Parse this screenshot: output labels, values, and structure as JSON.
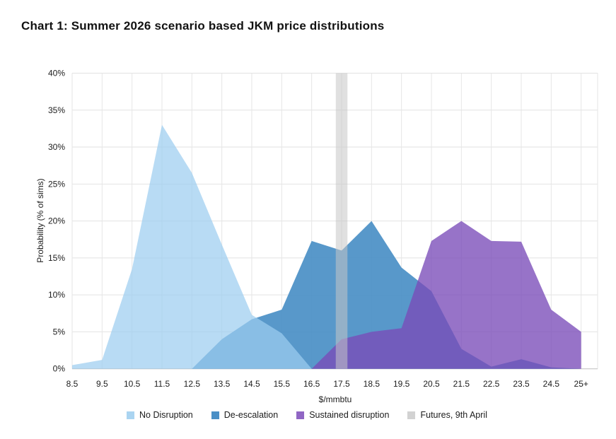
{
  "title": "Chart 1: Summer 2026 scenario based JKM price distributions",
  "chart_data": {
    "type": "area",
    "title": "Chart 1: Summer 2026 scenario based JKM price distributions",
    "x_axis": {
      "label": "$/mmbtu",
      "categories": [
        "8.5",
        "9.5",
        "10.5",
        "11.5",
        "12.5",
        "13.5",
        "14.5",
        "15.5",
        "16.5",
        "17.5",
        "18.5",
        "19.5",
        "20.5",
        "21.5",
        "22.5",
        "23.5",
        "24.5",
        "25+"
      ]
    },
    "y_axis": {
      "label": "Probability (% of sims)",
      "min": 0,
      "max": 40,
      "tick_step": 5,
      "ticks": [
        "0%",
        "5%",
        "10%",
        "15%",
        "20%",
        "25%",
        "30%",
        "35%",
        "40%"
      ]
    },
    "grid": true,
    "legend_position": "bottom",
    "series": [
      {
        "name": "No Disruption",
        "z": 3,
        "color": "#9dcdf0",
        "opacity": 0.72,
        "values": [
          0.5,
          1.2,
          13.5,
          33,
          26.5,
          16.8,
          7.3,
          4.8,
          0,
          0,
          0,
          0,
          0,
          0,
          0,
          0,
          0,
          0
        ]
      },
      {
        "name": "De-escalation",
        "z": 1,
        "color": "#4a8fc6",
        "opacity": 0.92,
        "values": [
          0,
          0,
          0,
          0,
          0,
          4,
          6.7,
          8,
          17.3,
          16,
          20,
          13.7,
          10.5,
          2.7,
          0.3,
          1.3,
          0.2,
          0
        ]
      },
      {
        "name": "Sustained disruption",
        "z": 2,
        "color": "#7a4cb8",
        "opacity": 0.78,
        "values": [
          0,
          0,
          0,
          0,
          0,
          0,
          0,
          0,
          0,
          4,
          5,
          5.5,
          17.3,
          20,
          17.3,
          17.2,
          8,
          5
        ]
      },
      {
        "name": "Futures, 9th April",
        "type": "vertical_bar",
        "color": "#c7c7c7",
        "opacity": 0.55,
        "at_category": "17.5",
        "width_categories": 0.39,
        "top_value": 40
      }
    ]
  },
  "legend": {
    "items": [
      {
        "label": "No Disruption",
        "color": "#aad4f1"
      },
      {
        "label": "De-escalation",
        "color": "#4a8fc6"
      },
      {
        "label": "Sustained disruption",
        "color": "#9066c4"
      },
      {
        "label": "Futures, 9th April",
        "color": "#d2d2d2"
      }
    ]
  }
}
